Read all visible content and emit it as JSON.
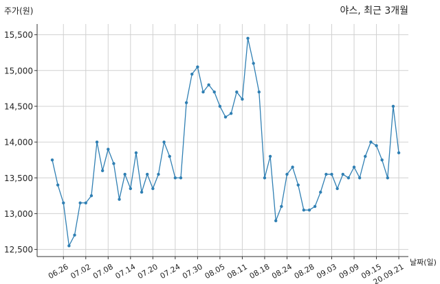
{
  "chart_data": {
    "type": "line",
    "title": "야스, 최근 3개월",
    "ylabel": "주가(원)",
    "xlabel": "날짜(일)",
    "ylim": [
      12400,
      15650
    ],
    "grid": true,
    "line_color": "#2f7fb3",
    "yticks": [
      12500,
      13000,
      13500,
      14000,
      14500,
      15000,
      15500
    ],
    "ytick_labels": [
      "12,500",
      "13,000",
      "13,500",
      "14,000",
      "14,500",
      "15,000",
      "15,500"
    ],
    "xtick_labels": [
      "06.26",
      "07.02",
      "07.08",
      "07.14",
      "07.20",
      "07.24",
      "07.30",
      "08.05",
      "08.11",
      "08.18",
      "08.24",
      "08.28",
      "09.03",
      "09.09",
      "09.15",
      "20.09.21"
    ],
    "xtick_index": [
      2,
      6,
      10,
      14,
      18,
      22,
      26,
      30,
      34,
      38,
      42,
      46,
      50,
      54,
      58,
      62
    ],
    "values": [
      13750,
      13400,
      13150,
      12550,
      12700,
      13150,
      13150,
      13250,
      14000,
      13600,
      13900,
      13700,
      13200,
      13550,
      13350,
      13850,
      13300,
      13550,
      13350,
      13550,
      14000,
      13800,
      13500,
      13500,
      14550,
      14950,
      15050,
      14700,
      14800,
      14700,
      14500,
      14350,
      14400,
      14700,
      14600,
      15450,
      15100,
      14700,
      13500,
      13800,
      12900,
      13100,
      13550,
      13650,
      13400,
      13050,
      13050,
      13100,
      13300,
      13550,
      13550,
      13350,
      13550,
      13500,
      13650,
      13500,
      13800,
      14000,
      13950,
      13750,
      13500,
      14500,
      13850
    ]
  }
}
